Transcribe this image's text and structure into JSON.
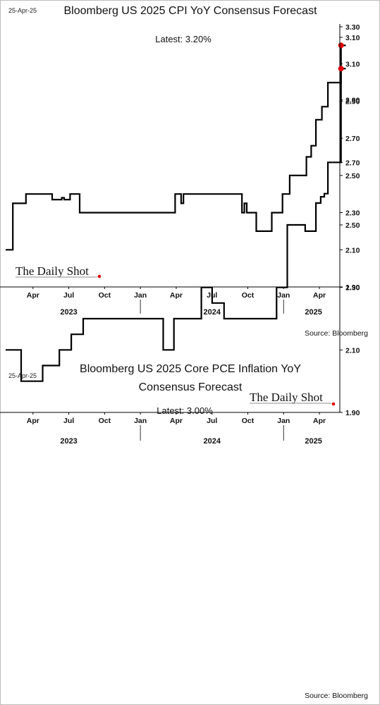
{
  "chart_data": [
    {
      "type": "line",
      "date_label": "25-Apr-25",
      "title_lines": [
        "Bloomberg US 2025 CPI YoY Consensus Forecast"
      ],
      "latest_label": "Latest:  3.20%",
      "ylim": [
        1.9,
        3.3
      ],
      "yticks": [
        "3.30",
        "3.10",
        "2.90",
        "2.70",
        "2.50",
        "2.30",
        "2.10",
        "1.90"
      ],
      "xlim": [
        0,
        28
      ],
      "x_month_labels": [
        {
          "x": 3,
          "label": "Apr"
        },
        {
          "x": 6,
          "label": "Jul"
        },
        {
          "x": 9,
          "label": "Oct"
        },
        {
          "x": 12,
          "label": "Jan"
        },
        {
          "x": 15,
          "label": "Apr"
        },
        {
          "x": 18,
          "label": "Jul"
        },
        {
          "x": 21,
          "label": "Oct"
        },
        {
          "x": 24,
          "label": "Jan"
        },
        {
          "x": 27,
          "label": "Apr"
        }
      ],
      "year_labels": [
        {
          "x": 6,
          "label": "2023"
        },
        {
          "x": 18,
          "label": "2024"
        },
        {
          "x": 26.5,
          "label": "2025"
        }
      ],
      "year_separators": [
        12,
        24
      ],
      "source": "Source: Bloomberg",
      "brand": "The Daily Shot",
      "grid": false,
      "series": [
        {
          "color": "#000000",
          "x": [
            0,
            0.6,
            0.6,
            1.7,
            1.7,
            3.9,
            3.9,
            4.7,
            4.7,
            4.9,
            4.9,
            5.4,
            5.4,
            6.2,
            6.2,
            14.2,
            14.2,
            14.7,
            14.7,
            14.9,
            14.9,
            19.8,
            19.8,
            20.0,
            20.0,
            20.2,
            20.2,
            21.0,
            21.0,
            22.3,
            22.3,
            23.2,
            23.2,
            23.8,
            23.8,
            25.2,
            25.2,
            25.6,
            25.6,
            26.0,
            26.0,
            26.5,
            26.5,
            27.0,
            27.0,
            27.6,
            27.6,
            28.1,
            28.1,
            28.5
          ],
          "values": [
            2.1,
            2.1,
            2.35,
            2.35,
            2.4,
            2.4,
            2.37,
            2.37,
            2.38,
            2.38,
            2.37,
            2.37,
            2.4,
            2.4,
            2.3,
            2.3,
            2.4,
            2.4,
            2.35,
            2.35,
            2.4,
            2.4,
            2.3,
            2.3,
            2.35,
            2.35,
            2.3,
            2.3,
            2.2,
            2.2,
            2.3,
            2.3,
            2.4,
            2.4,
            2.5,
            2.5,
            2.6,
            2.6,
            2.66,
            2.66,
            2.8,
            2.8,
            2.87,
            2.87,
            3.0,
            3.0,
            3.0,
            3.0,
            3.2,
            3.2
          ]
        }
      ],
      "last_point": {
        "x": 28.1,
        "value": 3.2,
        "color": "#e00000"
      }
    },
    {
      "type": "line",
      "date_label": "25-Apr-25",
      "title_lines": [
        "Bloomberg US 2025 Core PCE Inflation YoY",
        "Consensus Forecast"
      ],
      "latest_label": "Latest:  3.00%",
      "ylim": [
        1.9,
        3.1
      ],
      "yticks": [
        "3.10",
        "2.90",
        "2.70",
        "2.50",
        "2.30",
        "2.10",
        "1.90"
      ],
      "xlim": [
        0,
        28
      ],
      "x_month_labels": [
        {
          "x": 3,
          "label": "Apr"
        },
        {
          "x": 6,
          "label": "Jul"
        },
        {
          "x": 9,
          "label": "Oct"
        },
        {
          "x": 12,
          "label": "Jan"
        },
        {
          "x": 15,
          "label": "Apr"
        },
        {
          "x": 18,
          "label": "Jul"
        },
        {
          "x": 21,
          "label": "Oct"
        },
        {
          "x": 24,
          "label": "Jan"
        },
        {
          "x": 27,
          "label": "Apr"
        }
      ],
      "year_labels": [
        {
          "x": 6,
          "label": "2023"
        },
        {
          "x": 18,
          "label": "2024"
        },
        {
          "x": 26.5,
          "label": "2025"
        }
      ],
      "year_separators": [
        12,
        24
      ],
      "source": "Source: Bloomberg",
      "brand": "The Daily Shot",
      "grid": false,
      "series": [
        {
          "color": "#000000",
          "x": [
            0,
            1.3,
            1.3,
            3.1,
            3.1,
            3.6,
            3.6,
            4.5,
            4.5,
            5.5,
            5.5,
            6.5,
            6.5,
            13.2,
            13.2,
            14.1,
            14.1,
            16.4,
            16.4,
            17.3,
            17.3,
            18.3,
            18.3,
            22.7,
            22.7,
            23.6,
            23.6,
            25.1,
            25.1,
            26.0,
            26.0,
            26.4,
            26.4,
            26.7,
            26.7,
            27.0,
            27.0,
            27.5,
            27.5,
            28.1,
            28.1,
            28.5
          ],
          "values": [
            2.1,
            2.1,
            2.0,
            2.0,
            2.05,
            2.05,
            2.05,
            2.05,
            2.1,
            2.1,
            2.15,
            2.15,
            2.2,
            2.2,
            2.1,
            2.1,
            2.2,
            2.2,
            2.3,
            2.3,
            2.25,
            2.25,
            2.2,
            2.2,
            2.3,
            2.3,
            2.5,
            2.5,
            2.48,
            2.48,
            2.57,
            2.57,
            2.59,
            2.59,
            2.6,
            2.6,
            2.7,
            2.7,
            2.7,
            2.7,
            3.0,
            3.0
          ]
        }
      ],
      "last_point": {
        "x": 28.1,
        "value": 3.0,
        "color": "#e00000"
      }
    }
  ]
}
